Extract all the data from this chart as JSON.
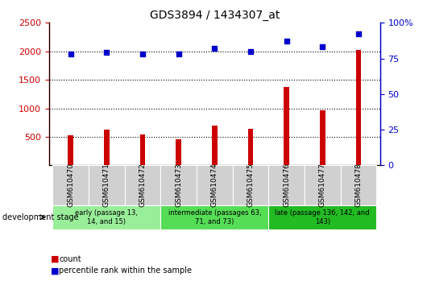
{
  "title": "GDS3894 / 1434307_at",
  "samples": [
    "GSM610470",
    "GSM610471",
    "GSM610472",
    "GSM610473",
    "GSM610474",
    "GSM610475",
    "GSM610476",
    "GSM610477",
    "GSM610478"
  ],
  "counts": [
    530,
    620,
    540,
    450,
    690,
    640,
    1380,
    960,
    2020
  ],
  "percentile_ranks": [
    78,
    79,
    78,
    78,
    82,
    80,
    87,
    83,
    92
  ],
  "ylim_left": [
    0,
    2500
  ],
  "ylim_right": [
    0,
    100
  ],
  "yticks_left": [
    500,
    1000,
    1500,
    2000,
    2500
  ],
  "yticks_right": [
    0,
    25,
    50,
    75,
    100
  ],
  "bar_color": "#cc0000",
  "scatter_color": "#0000cc",
  "bg_color": "#ffffff",
  "group_boundaries": [
    {
      "start": 0,
      "end": 3,
      "label": "early (passage 13,\n14, and 15)",
      "color": "#99ee99"
    },
    {
      "start": 3,
      "end": 6,
      "label": "intermediate (passages 63,\n71, and 73)",
      "color": "#55dd55"
    },
    {
      "start": 6,
      "end": 9,
      "label": "late (passage 136, 142, and\n143)",
      "color": "#22bb22"
    }
  ],
  "dev_stage_label": "development stage",
  "legend_count_label": "count",
  "legend_pct_label": "percentile rank within the sample",
  "bar_width": 0.15
}
